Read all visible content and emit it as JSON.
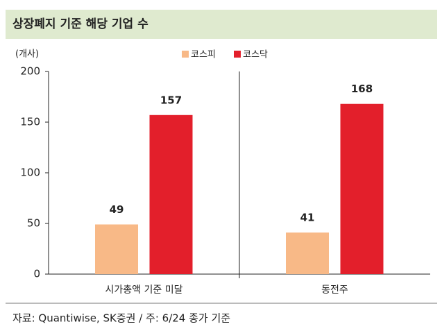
{
  "chart_data": {
    "type": "bar",
    "title": "상장폐지 기준 해당 기업 수",
    "y_unit": "(개사)",
    "categories": [
      "시가총액 기준 미달",
      "동전주"
    ],
    "series": [
      {
        "name": "코스피",
        "color": "#f8b987",
        "values": [
          49,
          41
        ]
      },
      {
        "name": "코스닥",
        "color": "#e31f2b",
        "values": [
          157,
          168
        ]
      }
    ],
    "ylim": [
      0,
      200
    ],
    "yticks": [
      0,
      50,
      100,
      150,
      200
    ],
    "grid": false,
    "legend": "top",
    "source": "자료: Quantiwise, SK증권 / 주: 6/24 종가 기준"
  }
}
